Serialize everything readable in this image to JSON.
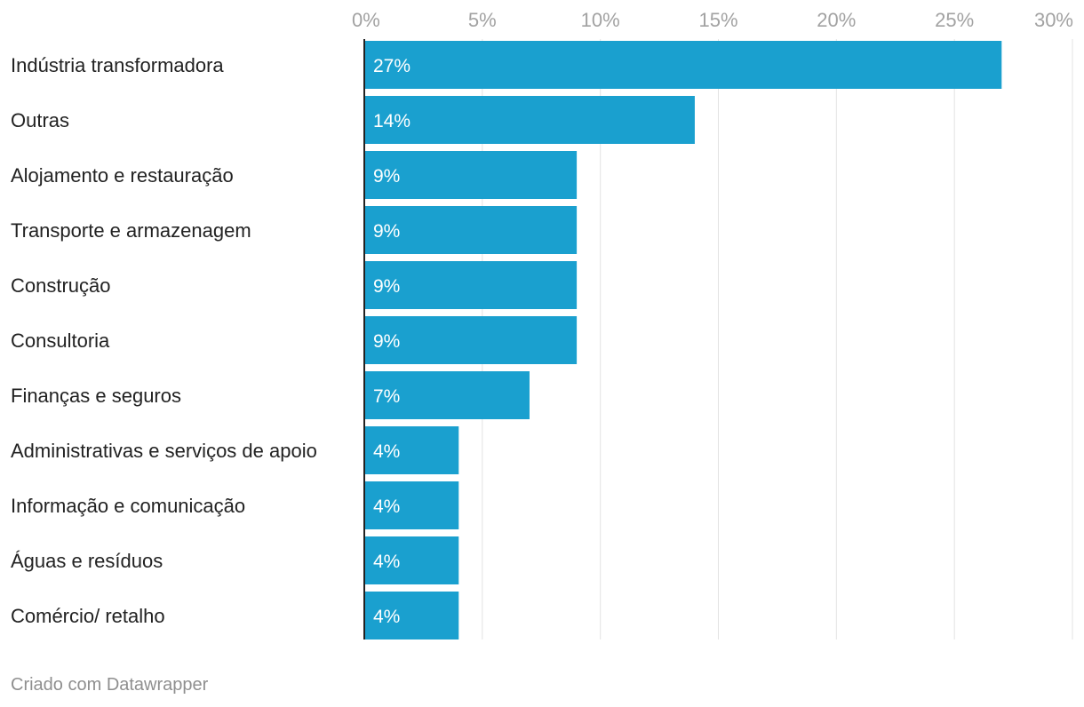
{
  "chart_data": {
    "type": "bar",
    "orientation": "horizontal",
    "categories": [
      "Indústria transformadora",
      "Outras",
      "Alojamento e restauração",
      "Transporte e armazenagem",
      "Construção",
      "Consultoria",
      "Finanças e seguros",
      "Administrativas e serviços de apoio",
      "Informação e comunicação",
      "Águas e resíduos",
      "Comércio/ retalho"
    ],
    "values": [
      27,
      14,
      9,
      9,
      9,
      9,
      7,
      4,
      4,
      4,
      4
    ],
    "value_labels": [
      "27%",
      "14%",
      "9%",
      "9%",
      "9%",
      "9%",
      "7%",
      "4%",
      "4%",
      "4%",
      "4%"
    ],
    "xlim": [
      0,
      30
    ],
    "x_ticks": [
      0,
      5,
      10,
      15,
      20,
      25,
      30
    ],
    "x_tick_labels": [
      "0%",
      "5%",
      "10%",
      "15%",
      "20%",
      "25%",
      "30%"
    ],
    "x_axis_position": "top",
    "grid": true,
    "legend": "none",
    "title": "",
    "xlabel": "",
    "ylabel": "",
    "colors": {
      "bar": "#1aa0cf",
      "grid": "#e3e3e3",
      "baseline": "#222222"
    }
  },
  "footer": {
    "credit": "Criado com Datawrapper"
  }
}
